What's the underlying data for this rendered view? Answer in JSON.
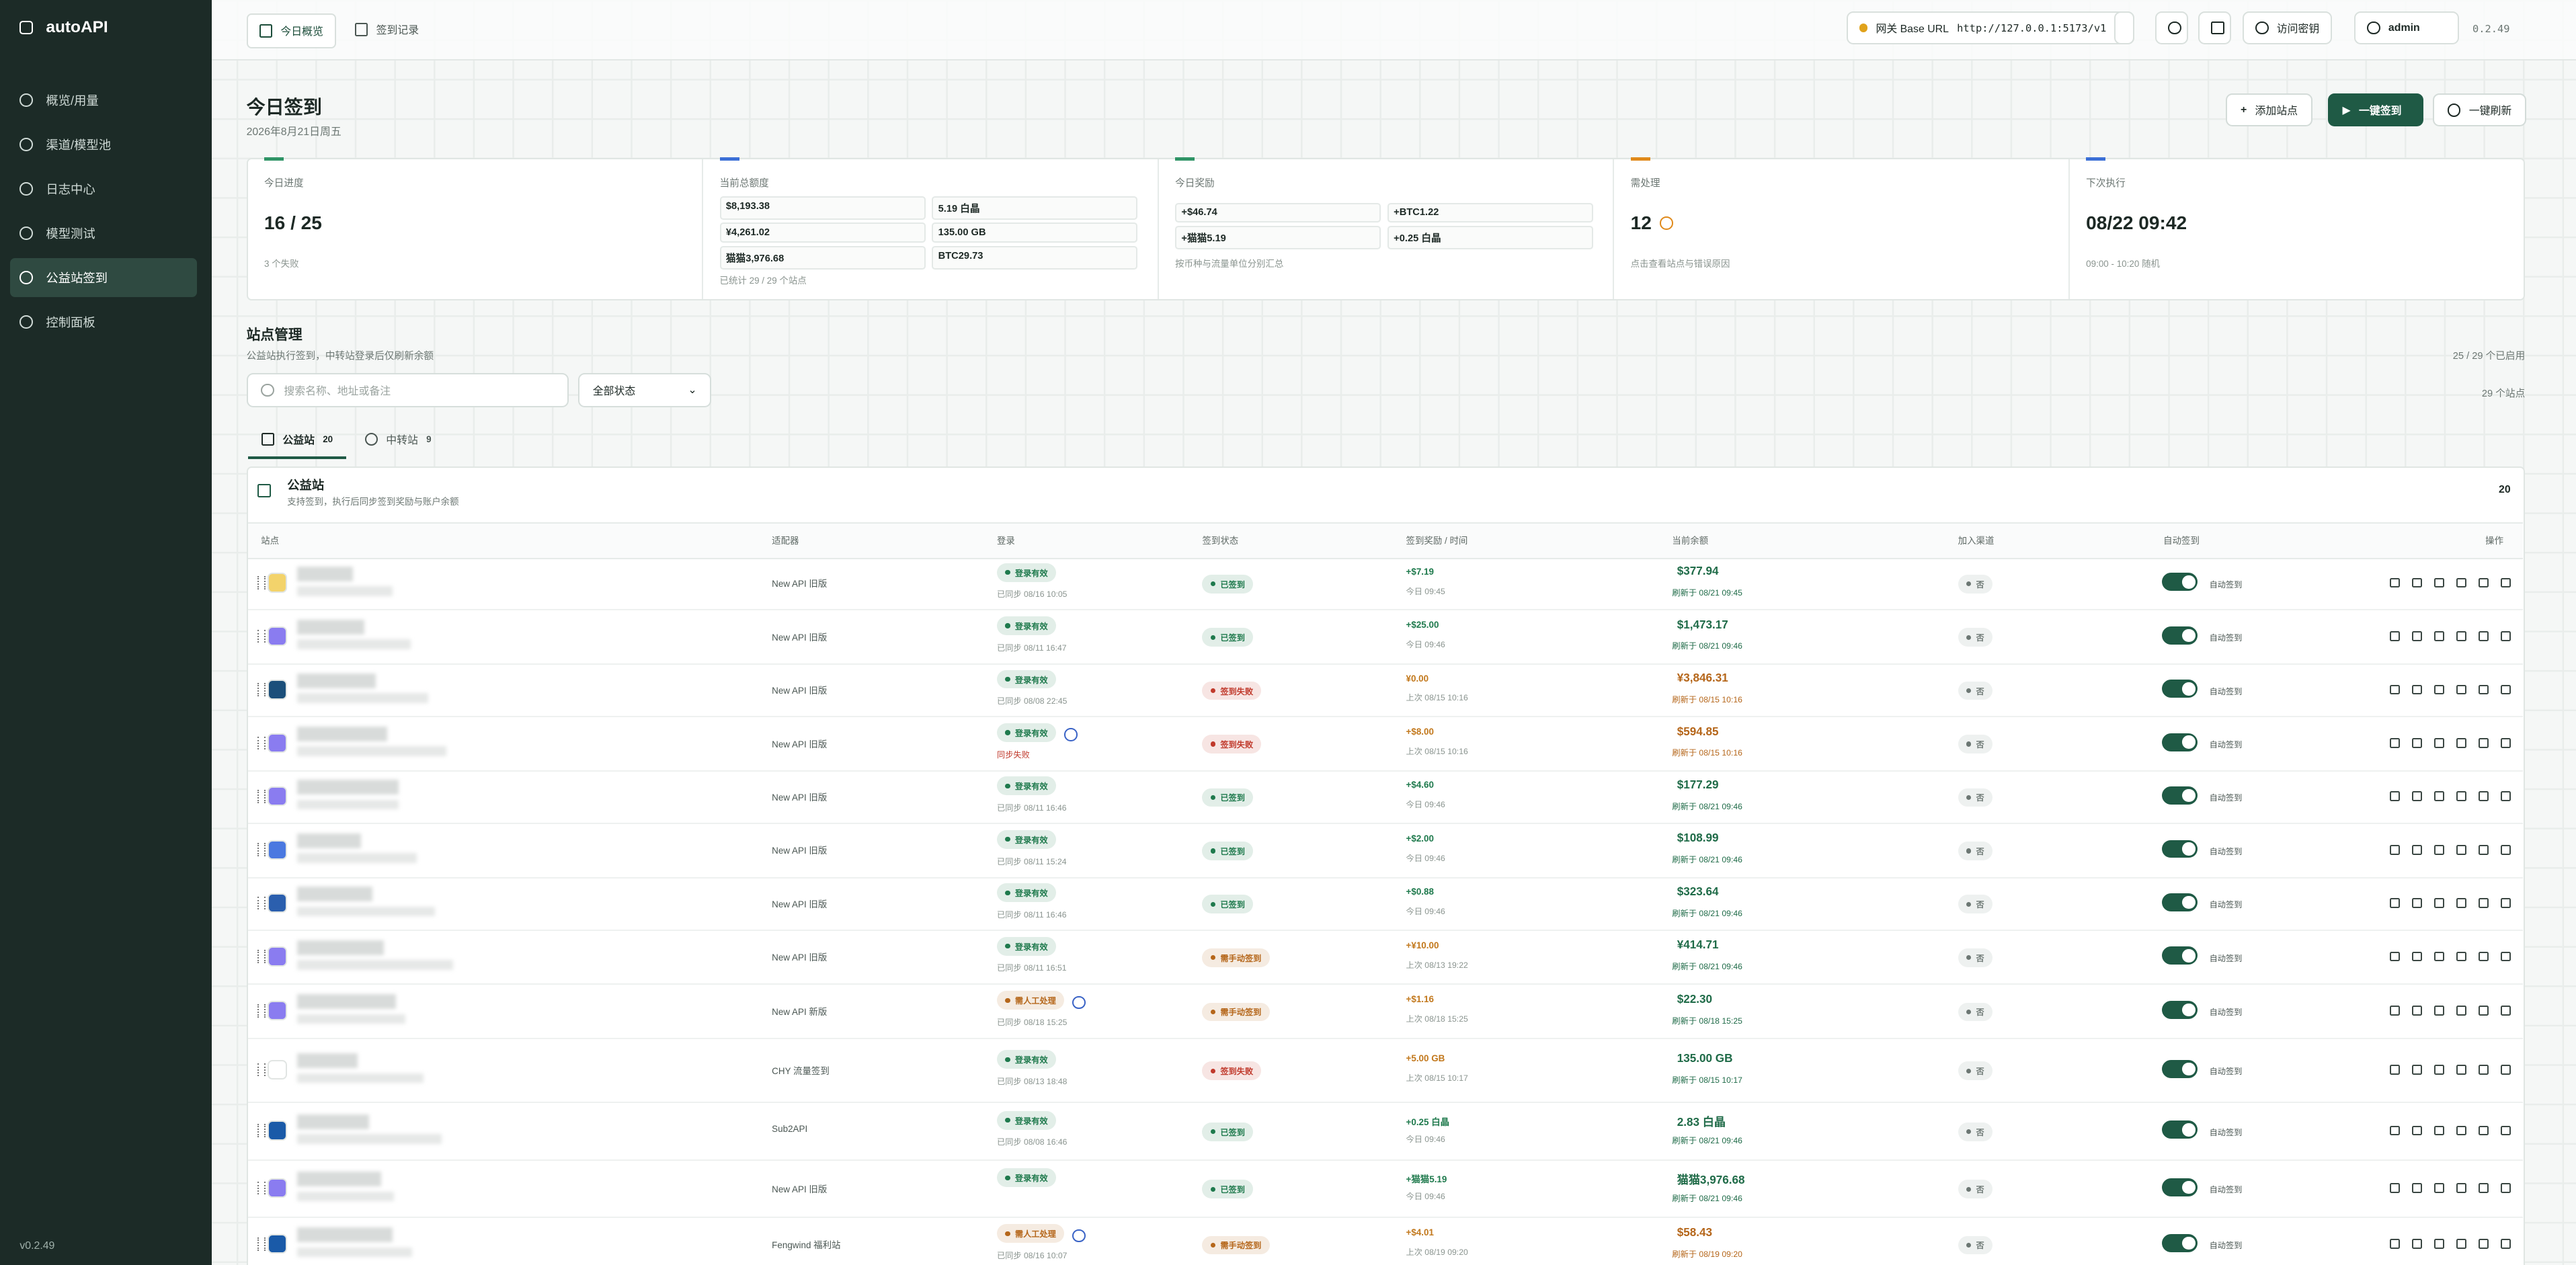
{
  "sidebar": {
    "brand": "autoAPI",
    "nav": [
      "概览/用量",
      "渠道/模型池",
      "日志中心",
      "模型测试",
      "公益站签到",
      "控制面板"
    ],
    "active": 4,
    "version": "v0.2.49"
  },
  "topbar": {
    "tabs": [
      "今日概览",
      "签到记录"
    ],
    "gateway_label": "网关 Base URL",
    "gateway_url": "http://127.0.0.1:5173/v1",
    "key_button": "访问密钥",
    "user": "admin",
    "version": "0.2.49"
  },
  "header": {
    "title": "今日签到",
    "date": "2026年8月21日周五",
    "buttons": [
      "添加站点",
      "一键签到",
      "一键刷新"
    ]
  },
  "stats": {
    "progress": {
      "label": "今日进度",
      "value": "16 / 25",
      "note": "3 个失败"
    },
    "total": {
      "label": "当前总额度",
      "cells": [
        "$8,193.38",
        "5.19 白晶",
        "¥4,261.02",
        "135.00 GB",
        "猫猫3,976.68",
        "BTC29.73"
      ],
      "note": "已统计 29 / 29 个站点"
    },
    "rewards": {
      "label": "今日奖励",
      "cells": [
        "+$46.74",
        "+BTC1.22",
        "+猫猫5.19",
        "+0.25 白晶"
      ],
      "note": "按币种与流量单位分别汇总"
    },
    "pending": {
      "label": "需处理",
      "value": 12,
      "note": "点击查看站点与错误原因"
    },
    "next": {
      "label": "下次执行",
      "value": "08/22 09:42",
      "note": "09:00 - 10:20 随机"
    }
  },
  "sites": {
    "title": "站点管理",
    "subtitle": "公益站执行签到，中转站登录后仅刷新余额",
    "enabled": "25 / 29 个已启用",
    "search_placeholder": "搜索名称、地址或备注",
    "filter": "全部状态",
    "count": "29 个站点",
    "tabs": [
      {
        "label": "公益站",
        "count": 20
      },
      {
        "label": "中转站",
        "count": 9
      }
    ],
    "panel": {
      "title": "公益站",
      "subtitle": "支持签到，执行后同步签到奖励与账户余额",
      "count": 20
    },
    "columns": [
      "站点",
      "适配器",
      "登录",
      "签到状态",
      "签到奖励 / 时间",
      "当前余额",
      "加入渠道",
      "自动签到",
      "操作"
    ],
    "rows": [
      {
        "adapter": "New API 旧版",
        "login": "登录有效",
        "login_color": "#1f7a4d",
        "sync": "已同步 08/16 10:05",
        "sync_color": "#8a948f",
        "status": "已签到",
        "status_color": "#1f7a4d",
        "reward": "+$7.19",
        "reward_color": "#1f7a4d",
        "reward_time": "今日 09:45",
        "balance": "$377.94",
        "balance_color": "#1f6b48",
        "refreshed": "刷新于 08/21 09:45",
        "channel": "否",
        "auto": "自动签到"
      },
      {
        "adapter": "New API 旧版",
        "login": "登录有效",
        "login_color": "#1f7a4d",
        "sync": "已同步 08/11 16:47",
        "sync_color": "#8a948f",
        "status": "已签到",
        "status_color": "#1f7a4d",
        "reward": "+$25.00",
        "reward_color": "#1f7a4d",
        "reward_time": "今日 09:46",
        "balance": "$1,473.17",
        "balance_color": "#1f6b48",
        "refreshed": "刷新于 08/21 09:46",
        "channel": "否",
        "auto": "自动签到"
      },
      {
        "adapter": "New API 旧版",
        "login": "登录有效",
        "login_color": "#1f7a4d",
        "sync": "已同步 08/08 22:45",
        "sync_color": "#8a948f",
        "status": "签到失败",
        "status_color": "#c0392b",
        "reward": "¥0.00",
        "reward_color": "#c2781c",
        "reward_time": "上次 08/15 10:16",
        "balance": "¥3,846.31",
        "balance_color": "#b5661a",
        "refreshed": "刷新于 08/15 10:16",
        "channel": "否",
        "auto": "自动签到"
      },
      {
        "adapter": "New API 旧版",
        "login": "登录有效",
        "login_color": "#1f7a4d",
        "key_icon": true,
        "sync": "同步失败",
        "sync_color": "#c0392b",
        "status": "签到失败",
        "status_color": "#c0392b",
        "reward": "+$8.00",
        "reward_color": "#c2781c",
        "reward_time": "上次 08/15 10:16",
        "balance": "$594.85",
        "balance_color": "#b5661a",
        "refreshed": "刷新于 08/15 10:16",
        "channel": "否",
        "auto": "自动签到"
      },
      {
        "adapter": "New API 旧版",
        "login": "登录有效",
        "login_color": "#1f7a4d",
        "sync": "已同步 08/11 16:46",
        "sync_color": "#8a948f",
        "status": "已签到",
        "status_color": "#1f7a4d",
        "reward": "+$4.60",
        "reward_color": "#1f7a4d",
        "reward_time": "今日 09:46",
        "balance": "$177.29",
        "balance_color": "#1f6b48",
        "refreshed": "刷新于 08/21 09:46",
        "channel": "否",
        "auto": "自动签到"
      },
      {
        "adapter": "New API 旧版",
        "login": "登录有效",
        "login_color": "#1f7a4d",
        "sync": "已同步 08/11 15:24",
        "sync_color": "#8a948f",
        "status": "已签到",
        "status_color": "#1f7a4d",
        "reward": "+$2.00",
        "reward_color": "#1f7a4d",
        "reward_time": "今日 09:46",
        "balance": "$108.99",
        "balance_color": "#1f6b48",
        "refreshed": "刷新于 08/21 09:46",
        "channel": "否",
        "auto": "自动签到"
      },
      {
        "adapter": "New API 旧版",
        "login": "登录有效",
        "login_color": "#1f7a4d",
        "sync": "已同步 08/11 16:46",
        "sync_color": "#8a948f",
        "status": "已签到",
        "status_color": "#1f7a4d",
        "reward": "+$0.88",
        "reward_color": "#1f7a4d",
        "reward_time": "今日 09:46",
        "balance": "$323.64",
        "balance_color": "#1f6b48",
        "refreshed": "刷新于 08/21 09:46",
        "channel": "否",
        "auto": "自动签到"
      },
      {
        "adapter": "New API 旧版",
        "login": "登录有效",
        "login_color": "#1f7a4d",
        "sync": "已同步 08/11 16:51",
        "sync_color": "#8a948f",
        "status": "需手动签到",
        "status_color": "#b5661a",
        "reward": "+¥10.00",
        "reward_color": "#c2781c",
        "reward_time": "上次 08/13 19:22",
        "balance": "¥414.71",
        "balance_color": "#1f6b48",
        "refreshed": "刷新于 08/21 09:46",
        "channel": "否",
        "auto": "自动签到"
      },
      {
        "adapter": "New API 新版",
        "login": "需人工处理",
        "login_color": "#b5661a",
        "key_icon": true,
        "sync": "已同步 08/18 15:25",
        "sync_color": "#8a948f",
        "status": "需手动签到",
        "status_color": "#b5661a",
        "reward": "+$1.16",
        "reward_color": "#c2781c",
        "reward_time": "上次 08/18 15:25",
        "balance": "$22.30",
        "balance_color": "#1f6b48",
        "refreshed": "刷新于 08/18 15:25",
        "channel": "否",
        "auto": "自动签到"
      },
      {
        "adapter": "CHY 流量签到",
        "login": "登录有效",
        "login_color": "#1f7a4d",
        "sync": "已同步 08/13 18:48",
        "sync_color": "#8a948f",
        "status": "签到失败",
        "status_color": "#c0392b",
        "reward": "+5.00 GB",
        "reward_color": "#c2781c",
        "reward_time": "上次 08/15 10:17",
        "balance": "135.00 GB",
        "balance_color": "#1f6b48",
        "refreshed": "刷新于 08/15 10:17",
        "channel": "否",
        "auto": "自动签到"
      },
      {
        "adapter": "Sub2API",
        "login": "登录有效",
        "login_color": "#1f7a4d",
        "sync": "已同步 08/08 16:46",
        "sync_color": "#8a948f",
        "status": "已签到",
        "status_color": "#1f7a4d",
        "reward": "+0.25 白晶",
        "reward_color": "#1f7a4d",
        "reward_time": "今日 09:46",
        "balance": "2.83 白晶",
        "balance_color": "#1f6b48",
        "refreshed": "刷新于 08/21 09:46",
        "channel": "否",
        "auto": "自动签到"
      },
      {
        "adapter": "New API 旧版",
        "login": "登录有效",
        "login_color": "#1f7a4d",
        "status": "已签到",
        "status_color": "#1f7a4d",
        "reward": "+猫猫5.19",
        "reward_color": "#1f7a4d",
        "reward_time": "今日 09:46",
        "balance": "猫猫3,976.68",
        "balance_color": "#1f6b48",
        "refreshed": "刷新于 08/21 09:46",
        "channel": "否",
        "auto": "自动签到"
      },
      {
        "adapter": "Fengwind 福利站",
        "login": "需人工处理",
        "login_color": "#b5661a",
        "key_icon": true,
        "sync": "已同步 08/16 10:07",
        "sync_color": "#8a948f",
        "status": "需手动签到",
        "status_color": "#b5661a",
        "reward": "+$4.01",
        "reward_color": "#c2781c",
        "reward_time": "上次 08/19 09:20",
        "balance": "$58.43",
        "balance_color": "#b5661a",
        "refreshed": "刷新于 08/19 09:20",
        "channel": "否",
        "auto": "自动签到"
      }
    ]
  }
}
